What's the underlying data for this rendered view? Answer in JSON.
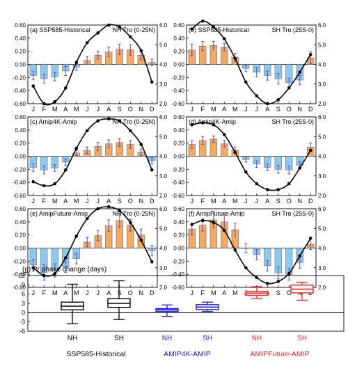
{
  "chart_data": [
    {
      "type": "bar",
      "panel": "(a)",
      "title": "SSP585-Historical",
      "region": "NH Tro (0-25N)",
      "categories": [
        "J",
        "F",
        "M",
        "A",
        "M",
        "J",
        "J",
        "A",
        "S",
        "O",
        "N",
        "D"
      ],
      "ylim": [
        -0.6,
        0.6
      ],
      "yticks": [
        "0.60",
        "0.40",
        "0.20",
        "0.00",
        "-0.20",
        "-0.40",
        "-0.60"
      ],
      "y2lim": [
        2.0,
        6.0
      ],
      "y2ticks": [
        "6.0",
        "5.0",
        "4.0",
        "3.0",
        "2.0"
      ],
      "series": [
        {
          "values": [
            -0.17,
            -0.22,
            -0.19,
            -0.1,
            -0.04,
            0.06,
            0.14,
            0.19,
            0.23,
            0.22,
            0.14,
            0.03
          ],
          "errors": [
            0.06,
            0.07,
            0.06,
            0.07,
            0.05,
            0.06,
            0.06,
            0.07,
            0.08,
            0.08,
            0.07,
            0.05
          ]
        },
        {
          "values": [
            2.9,
            2.0,
            2.1,
            2.8,
            4.1,
            5.1,
            5.6,
            6.0,
            5.9,
            5.4,
            4.7,
            3.1
          ]
        }
      ]
    },
    {
      "type": "bar",
      "panel": "(b)",
      "title": "SSP585-Historical",
      "region": "SH Tro (25S-0)",
      "categories": [
        "J",
        "F",
        "M",
        "A",
        "M",
        "J",
        "J",
        "A",
        "S",
        "O",
        "N",
        "D"
      ],
      "ylim": [
        -0.6,
        0.6
      ],
      "yticks": [
        "0.60",
        "0.40",
        "0.20",
        "0.00",
        "-0.20",
        "-0.40",
        "-0.60"
      ],
      "y2lim": [
        2.0,
        6.0
      ],
      "y2ticks": [
        "6.0",
        "5.0",
        "4.0",
        "3.0",
        "2.0"
      ],
      "series": [
        {
          "values": [
            0.22,
            0.28,
            0.29,
            0.26,
            0.11,
            -0.06,
            -0.12,
            -0.17,
            -0.22,
            -0.28,
            -0.24,
            0.1
          ],
          "errors": [
            0.09,
            0.07,
            0.06,
            0.06,
            0.06,
            0.05,
            0.07,
            0.07,
            0.08,
            0.07,
            0.07,
            0.09
          ]
        },
        {
          "values": [
            5.8,
            6.2,
            5.9,
            5.3,
            4.3,
            3.1,
            2.4,
            2.0,
            2.2,
            2.8,
            3.6,
            4.5
          ]
        }
      ]
    },
    {
      "type": "bar",
      "panel": "(c)",
      "title": "Amip4K-Amip",
      "region": "NH Tro (0-25N)",
      "categories": [
        "J",
        "F",
        "M",
        "A",
        "M",
        "J",
        "J",
        "A",
        "S",
        "O",
        "N",
        "D"
      ],
      "ylim": [
        -0.6,
        0.6
      ],
      "yticks": [
        "0.60",
        "0.40",
        "0.20",
        "0.00",
        "-0.20",
        "-0.40",
        "-0.60"
      ],
      "y2lim": [
        2.0,
        6.0
      ],
      "y2ticks": [
        "6.0",
        "5.0",
        "4.0",
        "3.0",
        "2.0"
      ],
      "series": [
        {
          "values": [
            -0.17,
            -0.21,
            -0.18,
            -0.09,
            0.05,
            0.09,
            0.15,
            0.19,
            0.21,
            0.18,
            0.06,
            -0.07
          ],
          "errors": [
            0.06,
            0.06,
            0.05,
            0.05,
            0.04,
            0.05,
            0.06,
            0.06,
            0.06,
            0.06,
            0.05,
            0.05
          ]
        },
        {
          "values": [
            2.7,
            2.5,
            2.6,
            3.3,
            4.4,
            5.3,
            5.8,
            5.9,
            5.8,
            5.3,
            4.6,
            3.3
          ]
        }
      ]
    },
    {
      "type": "bar",
      "panel": "(d)",
      "title": "Amip4K-Amip",
      "region": "SH Tro (25S-0)",
      "categories": [
        "J",
        "F",
        "M",
        "A",
        "M",
        "J",
        "J",
        "A",
        "S",
        "O",
        "N",
        "D"
      ],
      "ylim": [
        -0.6,
        0.6
      ],
      "yticks": [
        "0.60",
        "0.40",
        "0.20",
        "0.00",
        "-0.20",
        "-0.40",
        "-0.60"
      ],
      "y2lim": [
        2.0,
        6.0
      ],
      "y2ticks": [
        "6.0",
        "5.0",
        "4.0",
        "3.0",
        "2.0"
      ],
      "series": [
        {
          "values": [
            0.18,
            0.24,
            0.26,
            0.19,
            0.09,
            -0.05,
            -0.12,
            -0.17,
            -0.2,
            -0.21,
            -0.14,
            0.14
          ],
          "errors": [
            0.06,
            0.06,
            0.05,
            0.05,
            0.05,
            0.04,
            0.05,
            0.05,
            0.06,
            0.06,
            0.05,
            0.06
          ]
        },
        {
          "values": [
            5.6,
            5.7,
            5.6,
            5.1,
            4.2,
            3.2,
            2.6,
            2.3,
            2.3,
            2.6,
            3.4,
            4.3
          ]
        }
      ]
    },
    {
      "type": "bar",
      "panel": "(e)",
      "title": "AmipFuture-Amip",
      "region": "NH Tro (0-25N)",
      "categories": [
        "J",
        "F",
        "M",
        "A",
        "M",
        "J",
        "J",
        "A",
        "S",
        "O",
        "N",
        "D"
      ],
      "ylim": [
        -0.6,
        0.6
      ],
      "yticks": [
        "0.60",
        "0.40",
        "0.20",
        "0.00",
        "-0.20",
        "-0.40",
        "-0.60"
      ],
      "y2lim": [
        2.0,
        6.0
      ],
      "y2ticks": [
        "6.0",
        "5.0",
        "4.0",
        "3.0",
        "2.0"
      ],
      "series": [
        {
          "values": [
            -0.26,
            -0.37,
            -0.34,
            -0.29,
            -0.16,
            0.09,
            0.19,
            0.34,
            0.42,
            0.35,
            0.2,
            -0.04
          ],
          "errors": [
            0.09,
            0.12,
            0.1,
            0.08,
            0.08,
            0.07,
            0.08,
            0.09,
            0.1,
            0.09,
            0.09,
            0.08
          ]
        },
        {
          "values": [
            3.0,
            2.6,
            2.7,
            3.5,
            4.6,
            5.5,
            6.0,
            6.1,
            5.9,
            5.3,
            4.4,
            3.3
          ]
        }
      ]
    },
    {
      "type": "bar",
      "panel": "(f)",
      "title": "AmipFuture-Amip",
      "region": "SH Tro (25S-0)",
      "categories": [
        "J",
        "F",
        "M",
        "A",
        "M",
        "J",
        "J",
        "A",
        "S",
        "O",
        "N",
        "D"
      ],
      "ylim": [
        -0.6,
        0.6
      ],
      "yticks": [
        "0.60",
        "0.40",
        "0.20",
        "0.00",
        "-0.20",
        "-0.40",
        "-0.60"
      ],
      "y2lim": [
        2.0,
        6.0
      ],
      "y2ticks": [
        "6.0",
        "5.0",
        "4.0",
        "3.0",
        "2.0"
      ],
      "series": [
        {
          "values": [
            0.29,
            0.35,
            0.43,
            0.4,
            0.28,
            0.0,
            -0.1,
            -0.27,
            -0.38,
            -0.4,
            -0.22,
            0.06
          ],
          "errors": [
            0.09,
            0.09,
            0.12,
            0.12,
            0.1,
            0.07,
            0.08,
            0.08,
            0.09,
            0.09,
            0.09,
            0.08
          ]
        },
        {
          "values": [
            5.2,
            5.4,
            5.3,
            4.9,
            3.9,
            3.0,
            2.5,
            2.2,
            2.3,
            2.7,
            3.6,
            4.5
          ]
        }
      ]
    },
    {
      "type": "box",
      "panel": "(g)",
      "title": "Pr phase change (days)",
      "categories": [
        "NH",
        "SH",
        "NH",
        "SH",
        "NH",
        "SH"
      ],
      "ylim": [
        -6,
        12
      ],
      "yticks": [
        "12",
        "9",
        "6",
        "3",
        "0",
        "-3",
        "-6"
      ],
      "groups": [
        {
          "name": "SSP585-Historical",
          "color": "#000000"
        },
        {
          "name": "AMIP4K-AMIP",
          "color": "#1a1aff"
        },
        {
          "name": "AMIPFuture-AMIP",
          "color": "#ff2020"
        }
      ],
      "boxes": [
        {
          "min": -3.6,
          "q1": 0.9,
          "median": 2.1,
          "q3": 3.4,
          "max": 9.2
        },
        {
          "min": -2.2,
          "q1": 1.7,
          "median": 3.0,
          "q3": 4.5,
          "max": 10.3
        },
        {
          "min": -1.2,
          "q1": 0.4,
          "median": 0.9,
          "q3": 1.3,
          "max": 2.5
        },
        {
          "min": 0.4,
          "q1": 1.0,
          "median": 1.8,
          "q3": 2.6,
          "max": 3.4
        },
        {
          "min": 4.6,
          "q1": 5.6,
          "median": 6.3,
          "q3": 6.9,
          "max": 8.4
        },
        {
          "min": 4.0,
          "q1": 6.4,
          "median": 7.6,
          "q3": 8.9,
          "max": 9.8
        }
      ]
    }
  ],
  "colors": {
    "bar_fill_positive": "#f5a860",
    "bar_fill_negative": "#8cc9ec",
    "bar_edge": "#555555",
    "error_bar": "#4a4ad8",
    "line": "#000000"
  }
}
